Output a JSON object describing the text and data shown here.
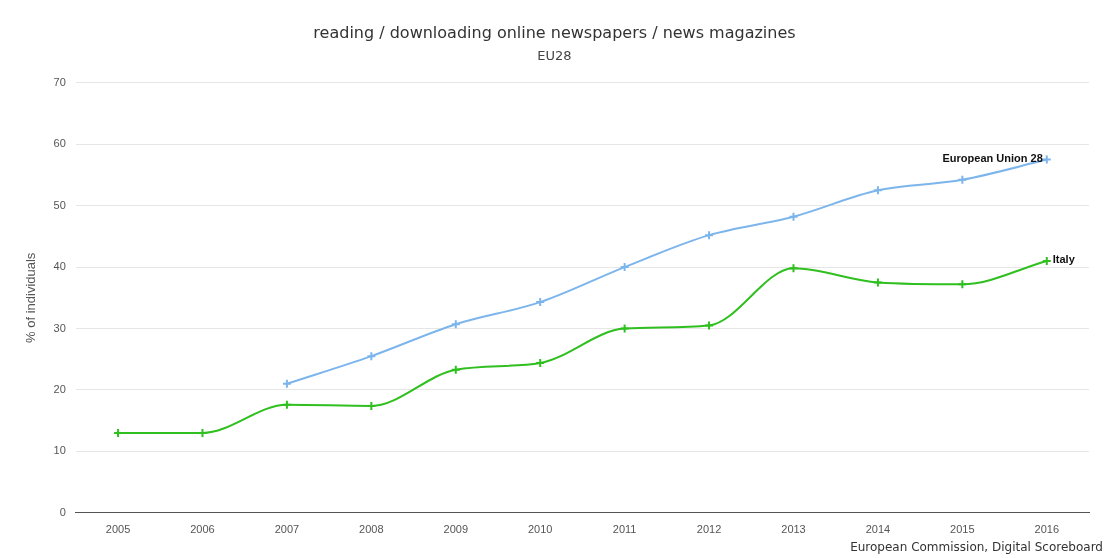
{
  "chart_data": {
    "type": "line",
    "title": "reading / downloading online newspapers / news magazines",
    "subtitle": "EU28",
    "ylabel": "% of individuals",
    "categories": [
      "2005",
      "2006",
      "2007",
      "2008",
      "2009",
      "2010",
      "2011",
      "2012",
      "2013",
      "2014",
      "2015",
      "2016"
    ],
    "series": [
      {
        "name": "European Union 28",
        "color": "#7cb5ec",
        "values": [
          null,
          null,
          21,
          25.5,
          30.7,
          34.3,
          40,
          45.2,
          48.2,
          52.5,
          54.2,
          57.5
        ]
      },
      {
        "name": "Italy",
        "color": "#2fbf1f",
        "values": [
          13,
          13,
          17.6,
          17.4,
          23.3,
          24.4,
          30,
          30.5,
          39.8,
          37.5,
          37.2,
          41
        ]
      }
    ],
    "ylim": [
      0,
      70
    ],
    "yticks": [
      0,
      10,
      20,
      30,
      40,
      50,
      60,
      70
    ],
    "grid": "y",
    "legend": false,
    "marker": "cross",
    "line_style": "solid",
    "annotations": [
      "European Commission, Digital Scoreboard"
    ]
  }
}
